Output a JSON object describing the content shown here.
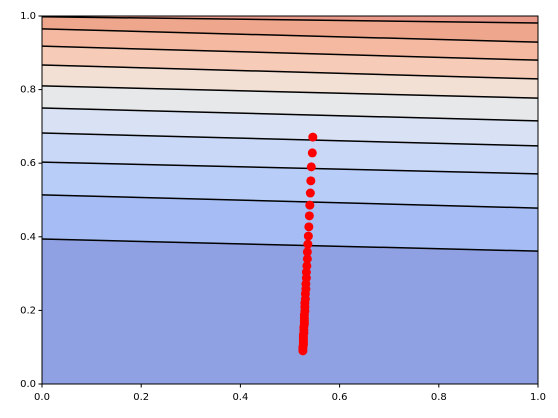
{
  "chart_data": {
    "type": "contour",
    "xlim": [
      0,
      1
    ],
    "ylim": [
      0,
      1
    ],
    "xticks": [
      {
        "value": 0,
        "label": "0.0"
      },
      {
        "value": 0.2,
        "label": "0.2"
      },
      {
        "value": 0.4,
        "label": "0.4"
      },
      {
        "value": 0.6,
        "label": "0.6"
      },
      {
        "value": 0.8,
        "label": "0.8"
      },
      {
        "value": 1,
        "label": "1.0"
      }
    ],
    "yticks": [
      {
        "value": 0,
        "label": "0.0"
      },
      {
        "value": 0.2,
        "label": "0.2"
      },
      {
        "value": 0.4,
        "label": "0.4"
      },
      {
        "value": 0.6,
        "label": "0.6"
      },
      {
        "value": 0.8,
        "label": "0.8"
      },
      {
        "value": 1,
        "label": "1.0"
      }
    ],
    "contours": [
      {
        "x": [
          0,
          1
        ],
        "y": [
          0.394,
          0.361
        ]
      },
      {
        "x": [
          0,
          1
        ],
        "y": [
          0.514,
          0.478
        ]
      },
      {
        "x": [
          0,
          1
        ],
        "y": [
          0.603,
          0.571
        ]
      },
      {
        "x": [
          0,
          1
        ],
        "y": [
          0.682,
          0.647
        ]
      },
      {
        "x": [
          0,
          1
        ],
        "y": [
          0.75,
          0.715
        ]
      },
      {
        "x": [
          0,
          1
        ],
        "y": [
          0.81,
          0.777
        ]
      },
      {
        "x": [
          0,
          1
        ],
        "y": [
          0.867,
          0.829
        ]
      },
      {
        "x": [
          0,
          1
        ],
        "y": [
          0.918,
          0.88
        ]
      },
      {
        "x": [
          0,
          1
        ],
        "y": [
          0.965,
          0.929
        ]
      },
      {
        "x": [
          0,
          1
        ],
        "y": [
          0.998,
          0.981
        ]
      }
    ],
    "contour_color": "#000000",
    "band_colors": [
      "#8fa1e3",
      "#a5bcf4",
      "#b8cef9",
      "#c9d8f7",
      "#d9e2f4",
      "#e7e8ea",
      "#f3e0d5",
      "#f6ccb8",
      "#f5b9a1",
      "#eea68d",
      "#e8998a"
    ],
    "scatter": {
      "color": "#ff0000",
      "x": [
        0.546,
        0.545,
        0.543,
        0.542,
        0.541,
        0.54,
        0.539,
        0.538,
        0.537,
        0.536,
        0.535,
        0.535,
        0.534,
        0.533,
        0.533,
        0.532,
        0.532,
        0.531,
        0.531,
        0.53,
        0.53,
        0.53,
        0.529,
        0.529,
        0.529,
        0.529,
        0.528,
        0.528,
        0.528,
        0.527,
        0.527,
        0.527,
        0.527,
        0.527,
        0.527,
        0.526,
        0.526,
        0.526
      ],
      "y": [
        0.671,
        0.628,
        0.59,
        0.552,
        0.519,
        0.486,
        0.457,
        0.427,
        0.402,
        0.38,
        0.359,
        0.34,
        0.321,
        0.304,
        0.288,
        0.272,
        0.258,
        0.245,
        0.231,
        0.22,
        0.209,
        0.198,
        0.188,
        0.179,
        0.171,
        0.163,
        0.155,
        0.147,
        0.139,
        0.133,
        0.128,
        0.122,
        0.117,
        0.111,
        0.106,
        0.101,
        0.095,
        0.09
      ]
    }
  }
}
